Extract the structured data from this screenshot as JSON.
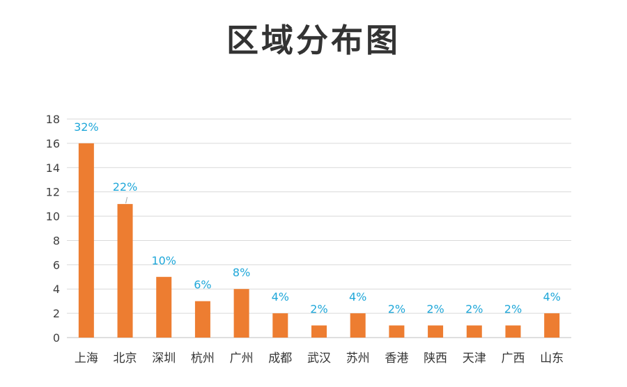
{
  "chart_data": {
    "type": "bar",
    "title": "区域分布图",
    "categories": [
      "上海",
      "北京",
      "深圳",
      "杭州",
      "广州",
      "成都",
      "武汉",
      "苏州",
      "香港",
      "陕西",
      "天津",
      "广西",
      "山东"
    ],
    "values": [
      16,
      11,
      5,
      3,
      4,
      2,
      1,
      2,
      1,
      1,
      1,
      1,
      2
    ],
    "data_labels": [
      "32%",
      "22%",
      "10%",
      "6%",
      "8%",
      "4%",
      "2%",
      "4%",
      "2%",
      "2%",
      "2%",
      "2%",
      "4%"
    ],
    "ylim": [
      0,
      18
    ],
    "yticks": [
      0,
      2,
      4,
      6,
      8,
      10,
      12,
      14,
      16,
      18
    ],
    "grid": true,
    "legend": "none",
    "bar_color": "#ED7D31",
    "label_color": "#1FA7D9",
    "grid_color": "#D9D9D9",
    "axis_color": "#BFBFBF"
  }
}
